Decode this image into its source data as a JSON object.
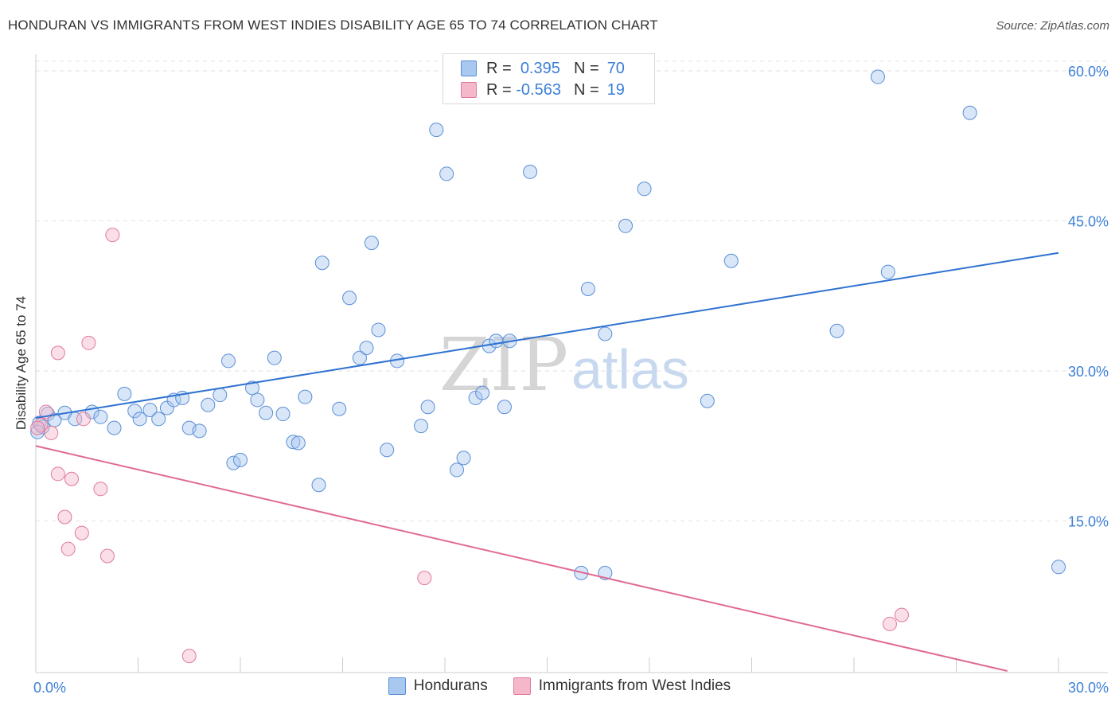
{
  "title": "HONDURAN VS IMMIGRANTS FROM WEST INDIES DISABILITY AGE 65 TO 74 CORRELATION CHART",
  "source": "Source: ZipAtlas.com",
  "watermark": {
    "zip": "ZIP",
    "atlas": "atlas"
  },
  "legend": {
    "rows": [
      {
        "r_label": "R =",
        "r_value": "0.395",
        "n_label": "N =",
        "n_value": "70",
        "color": "#a9c8f0"
      },
      {
        "r_label": "R =",
        "r_value": "-0.563",
        "n_label": "N =",
        "n_value": "19",
        "color": "#f5b8cb"
      }
    ]
  },
  "bottom_legend": [
    {
      "label": "Hondurans",
      "color": "#a9c8f0"
    },
    {
      "label": "Immigrants from West Indies",
      "color": "#f5b8cb"
    }
  ],
  "chart_data": {
    "type": "scatter",
    "title": "HONDURAN VS IMMIGRANTS FROM WEST INDIES DISABILITY AGE 65 TO 74 CORRELATION CHART",
    "xlabel": "",
    "ylabel": "Disability Age 65 to 74",
    "xlim": [
      0,
      30
    ],
    "ylim": [
      0,
      60
    ],
    "x_tick_labels": [
      {
        "value": 0,
        "label": "0.0%"
      },
      {
        "value": 30,
        "label": "30.0%"
      }
    ],
    "y_tick_labels": [
      {
        "value": 15,
        "label": "15.0%"
      },
      {
        "value": 30,
        "label": "30.0%"
      },
      {
        "value": 45,
        "label": "45.0%"
      },
      {
        "value": 60,
        "label": "60.0%"
      }
    ],
    "grid": true,
    "legend_position": "top-center",
    "series": [
      {
        "name": "Hondurans",
        "color": "#a9c8f0",
        "edge_color": "#5a8fd6",
        "line_color": "#2f72d0",
        "trend": [
          [
            0,
            25.3
          ],
          [
            30,
            41.8
          ]
        ],
        "points": [
          [
            0.1,
            24.8
          ],
          [
            0.2,
            24.4
          ],
          [
            0.35,
            25.7
          ],
          [
            0.55,
            25.1
          ],
          [
            0.85,
            25.8
          ],
          [
            1.15,
            25.2
          ],
          [
            1.65,
            25.9
          ],
          [
            1.9,
            25.4
          ],
          [
            2.3,
            24.3
          ],
          [
            2.6,
            27.7
          ],
          [
            2.9,
            26.0
          ],
          [
            3.05,
            25.2
          ],
          [
            3.35,
            26.1
          ],
          [
            3.6,
            25.2
          ],
          [
            3.85,
            26.3
          ],
          [
            4.05,
            27.1
          ],
          [
            4.3,
            27.3
          ],
          [
            4.5,
            24.3
          ],
          [
            4.8,
            24.0
          ],
          [
            5.05,
            26.6
          ],
          [
            5.4,
            27.6
          ],
          [
            5.65,
            31.0
          ],
          [
            5.8,
            20.8
          ],
          [
            6.0,
            21.1
          ],
          [
            6.35,
            28.3
          ],
          [
            6.5,
            27.1
          ],
          [
            6.75,
            25.8
          ],
          [
            7.0,
            31.3
          ],
          [
            7.25,
            25.7
          ],
          [
            7.55,
            22.9
          ],
          [
            7.7,
            22.8
          ],
          [
            7.9,
            27.4
          ],
          [
            8.3,
            18.6
          ],
          [
            8.4,
            40.8
          ],
          [
            8.9,
            26.2
          ],
          [
            9.2,
            37.3
          ],
          [
            9.5,
            31.3
          ],
          [
            9.7,
            32.3
          ],
          [
            9.85,
            42.8
          ],
          [
            10.05,
            34.1
          ],
          [
            10.3,
            22.1
          ],
          [
            10.6,
            31.0
          ],
          [
            11.3,
            24.5
          ],
          [
            11.5,
            26.4
          ],
          [
            11.75,
            54.1
          ],
          [
            12.05,
            49.7
          ],
          [
            12.35,
            20.1
          ],
          [
            12.55,
            21.3
          ],
          [
            12.9,
            27.3
          ],
          [
            13.1,
            27.8
          ],
          [
            13.3,
            32.5
          ],
          [
            13.5,
            33.0
          ],
          [
            13.75,
            26.4
          ],
          [
            13.9,
            33.0
          ],
          [
            14.5,
            49.9
          ],
          [
            15.5,
            58.4
          ],
          [
            16.0,
            9.8
          ],
          [
            16.2,
            38.2
          ],
          [
            16.7,
            33.7
          ],
          [
            16.7,
            9.8
          ],
          [
            17.3,
            44.5
          ],
          [
            17.85,
            48.2
          ],
          [
            19.7,
            27.0
          ],
          [
            20.4,
            41.0
          ],
          [
            23.5,
            34.0
          ],
          [
            24.7,
            59.4
          ],
          [
            25.0,
            39.9
          ],
          [
            27.4,
            55.8
          ],
          [
            30.0,
            10.4
          ],
          [
            0.05,
            23.9
          ]
        ]
      },
      {
        "name": "Immigrants from West Indies",
        "color": "#f5b8cb",
        "edge_color": "#e07a9b",
        "line_color": "#e06a95",
        "trend": [
          [
            0,
            22.5
          ],
          [
            28.5,
            0
          ]
        ],
        "points": [
          [
            0.15,
            24.6
          ],
          [
            0.3,
            25.9
          ],
          [
            0.45,
            23.8
          ],
          [
            0.65,
            19.7
          ],
          [
            0.65,
            31.8
          ],
          [
            0.85,
            15.4
          ],
          [
            0.95,
            12.2
          ],
          [
            1.05,
            19.2
          ],
          [
            1.35,
            13.8
          ],
          [
            1.4,
            25.2
          ],
          [
            1.55,
            32.8
          ],
          [
            1.9,
            18.2
          ],
          [
            2.1,
            11.5
          ],
          [
            2.25,
            43.6
          ],
          [
            4.5,
            1.5
          ],
          [
            11.4,
            9.3
          ],
          [
            25.05,
            4.7
          ],
          [
            25.4,
            5.6
          ],
          [
            0.05,
            24.3
          ]
        ]
      }
    ]
  }
}
